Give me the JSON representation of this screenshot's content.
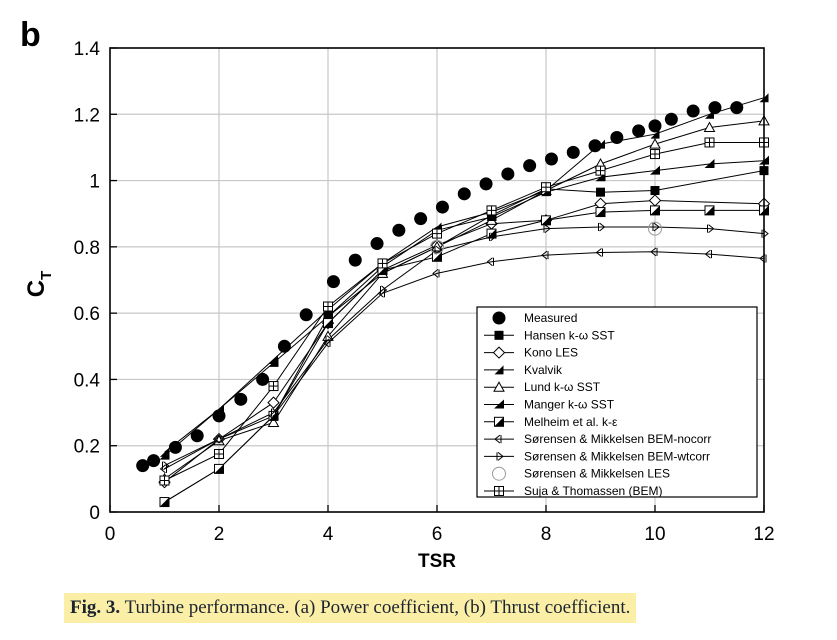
{
  "panel_label": "b",
  "caption": {
    "label": "Fig. 3.",
    "text": "Turbine performance. (a) Power coefficient, (b) Thrust coefficient."
  },
  "chart_data": {
    "type": "line",
    "title": "",
    "xlabel": "TSR",
    "ylabel": "C",
    "ylabel_subscript": "T",
    "xlim": [
      0,
      12
    ],
    "ylim": [
      0,
      1.4
    ],
    "xticks": [
      0,
      2,
      4,
      6,
      8,
      10,
      12
    ],
    "yticks": [
      0,
      0.2,
      0.4,
      0.6,
      0.8,
      1,
      1.2,
      1.4
    ],
    "ytick_labels": [
      "0",
      "0.2",
      "0.4",
      "0.6",
      "0.8",
      "1",
      "1.2",
      "1.4"
    ],
    "grid": true,
    "legend_position": "bottom-right",
    "series": [
      {
        "name": "Measured",
        "marker": "filled-circle",
        "line": false,
        "x": [
          0.6,
          0.8,
          1.2,
          1.6,
          2.0,
          2.4,
          2.8,
          3.2,
          3.6,
          4.1,
          4.5,
          4.9,
          5.3,
          5.7,
          6.1,
          6.5,
          6.9,
          7.3,
          7.7,
          8.1,
          8.5,
          8.9,
          9.3,
          9.7,
          10.0,
          10.3,
          10.7,
          11.1,
          11.5
        ],
        "y": [
          0.14,
          0.155,
          0.195,
          0.23,
          0.29,
          0.34,
          0.4,
          0.5,
          0.595,
          0.695,
          0.76,
          0.81,
          0.85,
          0.885,
          0.92,
          0.96,
          0.99,
          1.02,
          1.045,
          1.065,
          1.085,
          1.105,
          1.13,
          1.15,
          1.165,
          1.185,
          1.21,
          1.22,
          1.22
        ]
      },
      {
        "name": "Hansen k-ω SST",
        "marker": "filled-square",
        "line": true,
        "x": [
          1,
          2,
          3,
          4,
          5,
          6,
          7,
          8,
          9,
          10,
          12
        ],
        "y": [
          0.03,
          0.13,
          0.29,
          0.59,
          0.72,
          0.8,
          0.895,
          0.975,
          0.965,
          0.97,
          1.03
        ]
      },
      {
        "name": "Kono LES",
        "marker": "open-diamond",
        "line": true,
        "x": [
          1,
          2,
          3,
          4,
          5,
          6,
          7,
          8,
          9,
          10,
          12
        ],
        "y": [
          0.09,
          0.22,
          0.33,
          0.57,
          0.73,
          0.805,
          0.87,
          0.88,
          0.93,
          0.94,
          0.93
        ]
      },
      {
        "name": "Kvalvik",
        "marker": "filled-right-triangle",
        "line": true,
        "x": [
          1,
          2,
          3,
          4,
          5,
          6,
          7,
          8,
          9,
          10,
          11,
          12
        ],
        "y": [
          0.18,
          0.31,
          0.46,
          0.61,
          0.75,
          0.86,
          0.905,
          0.97,
          1.11,
          1.14,
          1.2,
          1.25
        ]
      },
      {
        "name": "Lund k-ω SST",
        "marker": "open-triangle",
        "line": true,
        "x": [
          1,
          2,
          3,
          4,
          5,
          6,
          7,
          8,
          9,
          10,
          11,
          12
        ],
        "y": [
          0.1,
          0.215,
          0.27,
          0.53,
          0.72,
          0.8,
          0.88,
          0.97,
          1.05,
          1.11,
          1.16,
          1.18
        ]
      },
      {
        "name": "Manger k-ω SST",
        "marker": "filled-up-triangle",
        "line": true,
        "x": [
          1,
          2,
          3,
          4,
          5,
          6,
          7,
          8,
          9,
          10,
          11,
          12
        ],
        "y": [
          0.17,
          0.31,
          0.45,
          0.59,
          0.74,
          0.85,
          0.89,
          0.965,
          1.01,
          1.03,
          1.05,
          1.06
        ]
      },
      {
        "name": "Melheim et al. k-ε",
        "marker": "half-filled-square",
        "line": true,
        "x": [
          1,
          2,
          3,
          4,
          5,
          6,
          7,
          8,
          9,
          10,
          11,
          12
        ],
        "y": [
          0.03,
          0.13,
          0.29,
          0.57,
          0.73,
          0.77,
          0.84,
          0.88,
          0.905,
          0.91,
          0.91,
          0.91
        ]
      },
      {
        "name": "Sørensen & Mikkelsen BEM-nocorr",
        "marker": "left-arrow",
        "line": true,
        "x": [
          1,
          2,
          3,
          4,
          5,
          6,
          7,
          8,
          9,
          10,
          11,
          12
        ],
        "y": [
          0.13,
          0.22,
          0.29,
          0.51,
          0.66,
          0.72,
          0.755,
          0.775,
          0.783,
          0.785,
          0.778,
          0.765
        ]
      },
      {
        "name": "Sørensen & Mikkelsen BEM-wtcorr",
        "marker": "right-arrow",
        "line": true,
        "x": [
          1,
          2,
          3,
          4,
          5,
          6,
          7,
          8,
          9,
          10,
          11,
          12
        ],
        "y": [
          0.14,
          0.22,
          0.3,
          0.52,
          0.67,
          0.79,
          0.83,
          0.855,
          0.86,
          0.86,
          0.855,
          0.84
        ]
      },
      {
        "name": "Sørensen & Mikkelsen LES",
        "marker": "open-circle",
        "line": false,
        "x": [
          6,
          10
        ],
        "y": [
          0.8,
          0.855
        ]
      },
      {
        "name": "Suja & Thomassen (BEM)",
        "marker": "boxed-plus",
        "line": true,
        "x": [
          1,
          2,
          3,
          4,
          5,
          6,
          7,
          8,
          9,
          10,
          11,
          12
        ],
        "y": [
          0.095,
          0.175,
          0.38,
          0.62,
          0.75,
          0.84,
          0.91,
          0.98,
          1.03,
          1.08,
          1.115,
          1.115
        ]
      }
    ]
  }
}
